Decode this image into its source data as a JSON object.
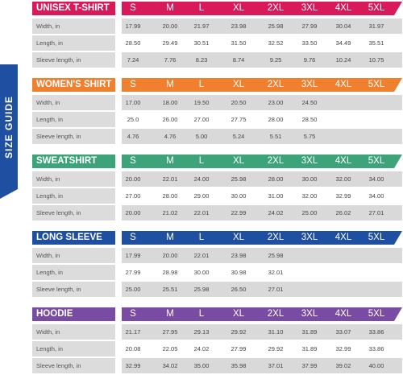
{
  "side_label": "SIZE GUIDE",
  "colors": {
    "side": "#1f4fa0",
    "unisex": "#d81a5b",
    "womens": "#f07f2e",
    "sweatshirt": "#3da47a",
    "longsleeve": "#1f4fa0",
    "hoodie": "#7a4ba3"
  },
  "sections": [
    {
      "title": "UNISEX T-SHIRT",
      "color": "#d81a5b",
      "sizes": [
        "S",
        "M",
        "L",
        "XL",
        "2XL",
        "3XL",
        "4XL",
        "5XL"
      ],
      "rows": [
        {
          "label": "Width, in",
          "values": [
            "17.99",
            "20.00",
            "21.97",
            "23.98",
            "25.98",
            "27.99",
            "30.04",
            "31.97"
          ]
        },
        {
          "label": "Length, in",
          "values": [
            "28.50",
            "29.49",
            "30.51",
            "31.50",
            "32.52",
            "33.50",
            "34.49",
            "35.51"
          ]
        },
        {
          "label": "Sleeve length, in",
          "values": [
            "7.24",
            "7.76",
            "8.23",
            "8.74",
            "9.25",
            "9.76",
            "10.24",
            "10.75"
          ]
        }
      ]
    },
    {
      "title": "WOMEN'S SHIRT",
      "color": "#f07f2e",
      "sizes": [
        "S",
        "M",
        "L",
        "XL",
        "2XL",
        "3XL",
        "4XL",
        "5XL"
      ],
      "rows": [
        {
          "label": "Width, in",
          "values": [
            "17.00",
            "18.00",
            "19.50",
            "20.50",
            "23.00",
            "24.50",
            "",
            ""
          ]
        },
        {
          "label": "Length, in",
          "values": [
            "25.0",
            "26.00",
            "27.00",
            "27.75",
            "28.00",
            "28.50",
            "",
            ""
          ]
        },
        {
          "label": "Sleeve length, in",
          "values": [
            "4.76",
            "4.76",
            "5.00",
            "5.24",
            "5.51",
            "5.75",
            "",
            ""
          ]
        }
      ]
    },
    {
      "title": "SWEATSHIRT",
      "color": "#3da47a",
      "sizes": [
        "S",
        "M",
        "L",
        "XL",
        "2XL",
        "3XL",
        "4XL",
        "5XL"
      ],
      "rows": [
        {
          "label": "Width, in",
          "values": [
            "20.00",
            "22.01",
            "24.00",
            "25.98",
            "28.00",
            "30.00",
            "32.00",
            "34.00"
          ]
        },
        {
          "label": "Length, in",
          "values": [
            "27.00",
            "28.00",
            "29.00",
            "30.00",
            "31.00",
            "32.00",
            "32.99",
            "34.00"
          ]
        },
        {
          "label": "Sleeve length, in",
          "values": [
            "20.00",
            "21.02",
            "22.01",
            "22.99",
            "24.02",
            "25.00",
            "26.02",
            "27.01"
          ]
        }
      ]
    },
    {
      "title": "LONG SLEEVE",
      "color": "#1f4fa0",
      "sizes": [
        "S",
        "M",
        "L",
        "XL",
        "2XL",
        "3XL",
        "4XL",
        "5XL"
      ],
      "rows": [
        {
          "label": "Width, in",
          "values": [
            "17.99",
            "20.00",
            "22.01",
            "23.98",
            "25.98",
            "",
            "",
            ""
          ]
        },
        {
          "label": "Length, in",
          "values": [
            "27.99",
            "28.98",
            "30.00",
            "30.98",
            "32.01",
            "",
            "",
            ""
          ]
        },
        {
          "label": "Sleeve length, in",
          "values": [
            "25.00",
            "25.51",
            "25.98",
            "26.50",
            "27.01",
            "",
            "",
            ""
          ]
        }
      ]
    },
    {
      "title": "HOODIE",
      "color": "#7a4ba3",
      "sizes": [
        "S",
        "M",
        "L",
        "XL",
        "2XL",
        "3XL",
        "4XL",
        "5XL"
      ],
      "rows": [
        {
          "label": "Width, in",
          "values": [
            "21.17",
            "27.95",
            "29.13",
            "29.92",
            "31.10",
            "31.89",
            "33.07",
            "33.86"
          ]
        },
        {
          "label": "Length, in",
          "values": [
            "20.08",
            "22.05",
            "24.02",
            "27.99",
            "29.92",
            "31.89",
            "32.99",
            "33.86"
          ]
        },
        {
          "label": "Sleeve length, in",
          "values": [
            "32.99",
            "34.02",
            "35.00",
            "35.98",
            "37.01",
            "37.99",
            "39.02",
            "40.00"
          ]
        }
      ]
    }
  ]
}
